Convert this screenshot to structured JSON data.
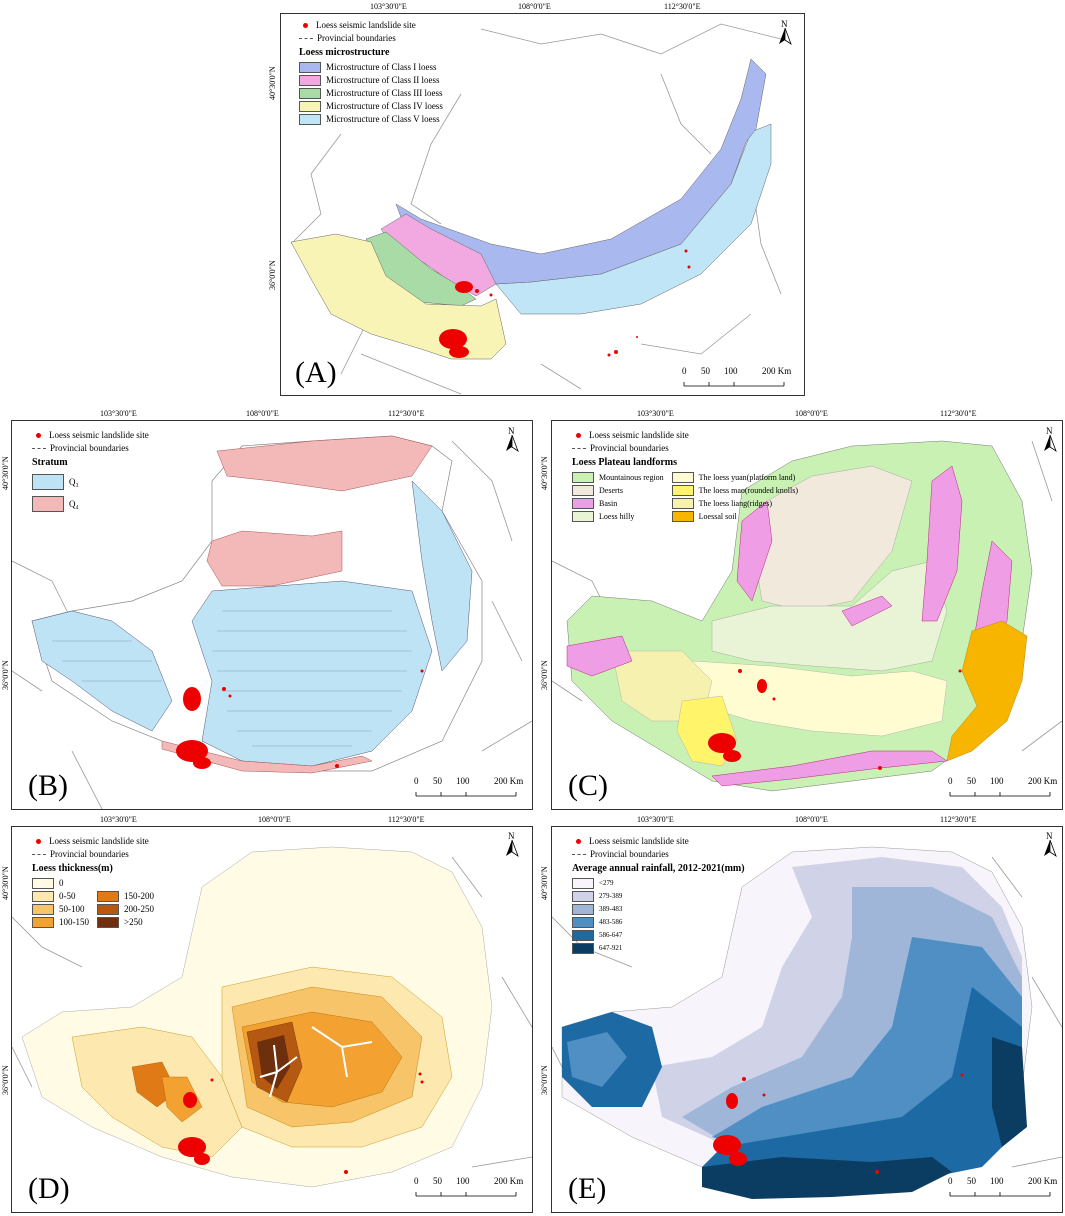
{
  "common": {
    "site_label": "Loess seismic landslide site",
    "boundary_label": "Provincial boundaries",
    "north": "N",
    "scale": [
      "0",
      "50",
      "100",
      "200 Km"
    ]
  },
  "coords": {
    "lon1": "103°30'0\"E",
    "lon2": "108°0'0\"E",
    "lon3": "112°30'0\"E",
    "lat1": "40°30'0\"N",
    "lat2": "36°0'0\"N"
  },
  "panels": {
    "A": {
      "label": "(A)",
      "legend_title": "Loess microstructure",
      "items": [
        {
          "label": "Microstructure of Class I loess",
          "color": "#a9b8ee"
        },
        {
          "label": "Microstructure of Class II loess",
          "color": "#f2a9e2"
        },
        {
          "label": "Microstructure of Class III loess",
          "color": "#a9dba6"
        },
        {
          "label": "Microstructure of Class IV loess",
          "color": "#f7f4b6"
        },
        {
          "label": "Microstructure of Class V loess",
          "color": "#bfe5f6"
        }
      ]
    },
    "B": {
      "label": "(B)",
      "legend_title": "Stratum",
      "items": [
        {
          "label": "Q₃",
          "color": "#bde3f4"
        },
        {
          "label": "Q₄",
          "color": "#f3b8b8"
        }
      ]
    },
    "C": {
      "label": "(C)",
      "legend_title": "Loess Plateau landforms",
      "items": [
        {
          "label": "Mountainous region",
          "color": "#c9f1b4"
        },
        {
          "label": "The loess yuan(platform land)",
          "color": "#fffcd2"
        },
        {
          "label": "Deserts",
          "color": "#f1eadc"
        },
        {
          "label": "The loess mao(rounded knolls)",
          "color": "#fff46a"
        },
        {
          "label": "Basin",
          "color": "#ef9ee5"
        },
        {
          "label": "The loess liang(ridges)",
          "color": "#f7f1b0"
        },
        {
          "label": "Loess hilly",
          "color": "#e9f3d6"
        },
        {
          "label": "Loessal soil",
          "color": "#f8b500"
        }
      ]
    },
    "D": {
      "label": "(D)",
      "legend_title": "Loess thickness(m)",
      "items": [
        {
          "label": "0",
          "color": "#fffbe4"
        },
        {
          "label": "",
          "color": ""
        },
        {
          "label": "0-50",
          "color": "#fde8b0"
        },
        {
          "label": "150-200",
          "color": "#e07a16"
        },
        {
          "label": "50-100",
          "color": "#f8c46a"
        },
        {
          "label": "200-250",
          "color": "#b55812"
        },
        {
          "label": "100-150",
          "color": "#f3a232"
        },
        {
          "label": ">250",
          "color": "#6e2f0c"
        }
      ]
    },
    "E": {
      "label": "(E)",
      "legend_title": "Average annual rainfall, 2012-2021(mm)",
      "items": [
        {
          "label": "<279",
          "color": "#f7f5fb"
        },
        {
          "label": "279-389",
          "color": "#d0d3e8"
        },
        {
          "label": "389-483",
          "color": "#9fb6d9"
        },
        {
          "label": "483-586",
          "color": "#4f8fc3"
        },
        {
          "label": "586-647",
          "color": "#1d69a3"
        },
        {
          "label": "647-921",
          "color": "#0b3d63"
        }
      ]
    }
  }
}
